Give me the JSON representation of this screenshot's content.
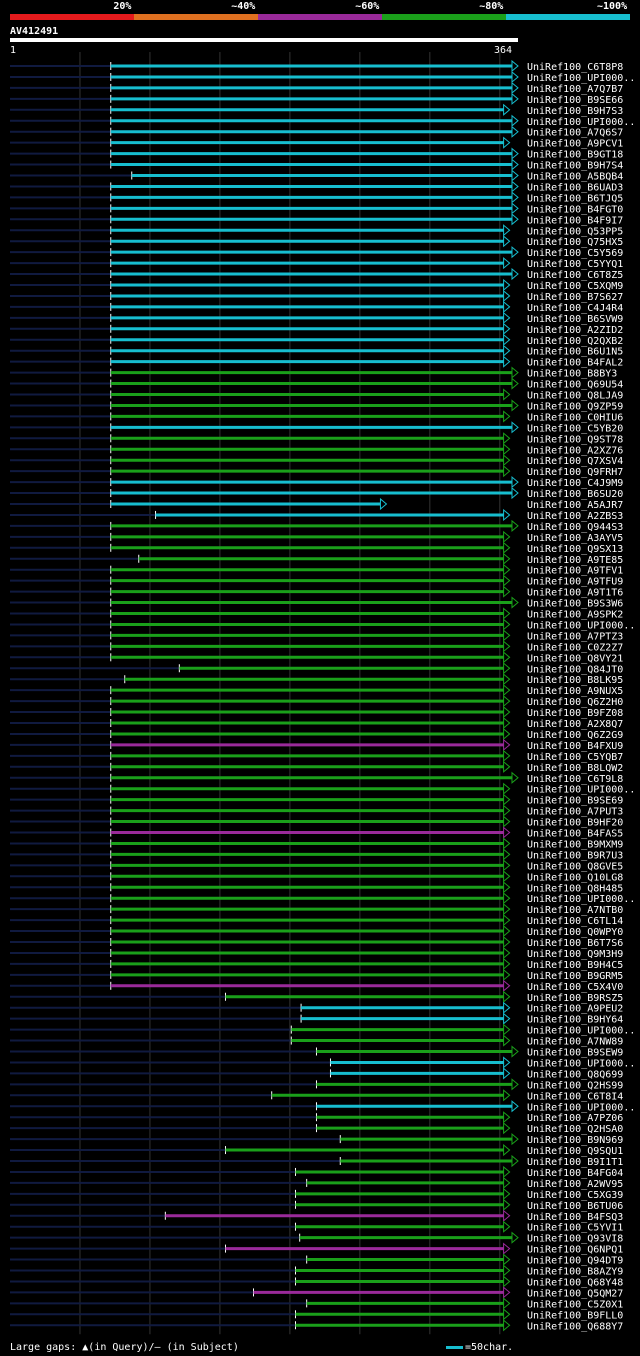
{
  "legend": {
    "items": [
      {
        "label": "20%",
        "color": "#e41a1c"
      },
      {
        "label": "~40%",
        "color": "#e07020"
      },
      {
        "label": "~60%",
        "color": "#9a2a9a"
      },
      {
        "label": "~80%",
        "color": "#1aa01a"
      },
      {
        "label": "~100%",
        "color": "#17becf"
      }
    ]
  },
  "query": {
    "name": "AV412491",
    "start_label": "1",
    "end_label": "364"
  },
  "footer": {
    "gaps_prefix": "Large gaps:",
    "query_gap_text": "(in Query)/",
    "subject_gap_text": "(in Subject)",
    "scale_text": "=50char."
  },
  "chart_data": {
    "type": "alignment-overview",
    "title": "AV412491",
    "query_length": 364,
    "x_range": [
      1,
      364
    ],
    "identity_classes": {
      "cyan": "~100%",
      "green": "~80%",
      "purple": "~60%",
      "orange": "~40%",
      "red": "20%"
    },
    "hits": [
      {
        "name": "UniRef100_C6T8P8",
        "start": 73,
        "end": 364,
        "color": "cyan"
      },
      {
        "name": "UniRef100_UPI000..",
        "start": 73,
        "end": 364,
        "color": "cyan"
      },
      {
        "name": "UniRef100_A7Q7B7",
        "start": 73,
        "end": 364,
        "color": "cyan"
      },
      {
        "name": "UniRef100_B9SE66",
        "start": 73,
        "end": 364,
        "color": "cyan"
      },
      {
        "name": "UniRef100_B9H7S3",
        "start": 73,
        "end": 358,
        "color": "cyan"
      },
      {
        "name": "UniRef100_UPI000..",
        "start": 73,
        "end": 364,
        "color": "cyan"
      },
      {
        "name": "UniRef100_A7Q6S7",
        "start": 73,
        "end": 364,
        "color": "cyan"
      },
      {
        "name": "UniRef100_A9PCV1",
        "start": 73,
        "end": 358,
        "color": "cyan"
      },
      {
        "name": "UniRef100_B9GT18",
        "start": 73,
        "end": 364,
        "color": "cyan"
      },
      {
        "name": "UniRef100_B9H7S4",
        "start": 73,
        "end": 364,
        "color": "cyan"
      },
      {
        "name": "UniRef100_A5BQB4",
        "start": 88,
        "end": 364,
        "color": "cyan"
      },
      {
        "name": "UniRef100_B6UAD3",
        "start": 73,
        "end": 364,
        "color": "cyan"
      },
      {
        "name": "UniRef100_B6TJQ5",
        "start": 73,
        "end": 364,
        "color": "cyan"
      },
      {
        "name": "UniRef100_B4FGT0",
        "start": 73,
        "end": 364,
        "color": "cyan"
      },
      {
        "name": "UniRef100_B4F9I7",
        "start": 73,
        "end": 364,
        "color": "cyan"
      },
      {
        "name": "UniRef100_Q53PP5",
        "start": 73,
        "end": 358,
        "color": "cyan"
      },
      {
        "name": "UniRef100_Q75HX5",
        "start": 73,
        "end": 358,
        "color": "cyan"
      },
      {
        "name": "UniRef100_C5Y569",
        "start": 73,
        "end": 364,
        "color": "cyan"
      },
      {
        "name": "UniRef100_C5YYQ1",
        "start": 73,
        "end": 358,
        "color": "cyan"
      },
      {
        "name": "UniRef100_C6T8Z5",
        "start": 73,
        "end": 364,
        "color": "cyan"
      },
      {
        "name": "UniRef100_C5XQM9",
        "start": 73,
        "end": 358,
        "color": "cyan"
      },
      {
        "name": "UniRef100_B7S627",
        "start": 73,
        "end": 358,
        "color": "cyan"
      },
      {
        "name": "UniRef100_C4J4R4",
        "start": 73,
        "end": 358,
        "color": "cyan"
      },
      {
        "name": "UniRef100_B6SVW9",
        "start": 73,
        "end": 358,
        "color": "cyan"
      },
      {
        "name": "UniRef100_A2ZID2",
        "start": 73,
        "end": 358,
        "color": "cyan"
      },
      {
        "name": "UniRef100_Q2QXB2",
        "start": 73,
        "end": 358,
        "color": "cyan"
      },
      {
        "name": "UniRef100_B6U1N5",
        "start": 73,
        "end": 358,
        "color": "cyan"
      },
      {
        "name": "UniRef100_B4FAL2",
        "start": 73,
        "end": 358,
        "color": "cyan"
      },
      {
        "name": "UniRef100_B8BY3",
        "start": 73,
        "end": 364,
        "color": "green"
      },
      {
        "name": "UniRef100_Q69U54",
        "start": 73,
        "end": 364,
        "color": "green"
      },
      {
        "name": "UniRef100_Q8LJA9",
        "start": 73,
        "end": 358,
        "color": "green"
      },
      {
        "name": "UniRef100_Q9ZP59",
        "start": 73,
        "end": 364,
        "color": "green"
      },
      {
        "name": "UniRef100_C0HIU6",
        "start": 73,
        "end": 358,
        "color": "green"
      },
      {
        "name": "UniRef100_C5YB20",
        "start": 73,
        "end": 364,
        "color": "cyan"
      },
      {
        "name": "UniRef100_Q9ST78",
        "start": 73,
        "end": 358,
        "color": "green"
      },
      {
        "name": "UniRef100_A2XZ76",
        "start": 73,
        "end": 358,
        "color": "green"
      },
      {
        "name": "UniRef100_Q7XSV4",
        "start": 73,
        "end": 358,
        "color": "green"
      },
      {
        "name": "UniRef100_Q9FRH7",
        "start": 73,
        "end": 358,
        "color": "green"
      },
      {
        "name": "UniRef100_C4J9M9",
        "start": 73,
        "end": 364,
        "color": "cyan"
      },
      {
        "name": "UniRef100_B6SU20",
        "start": 73,
        "end": 364,
        "color": "cyan"
      },
      {
        "name": "UniRef100_A5AJR7",
        "start": 73,
        "end": 270,
        "color": "cyan"
      },
      {
        "name": "UniRef100_A2ZBS3",
        "start": 105,
        "end": 358,
        "color": "cyan"
      },
      {
        "name": "UniRef100_Q944S3",
        "start": 73,
        "end": 364,
        "color": "green"
      },
      {
        "name": "UniRef100_A3AYV5",
        "start": 73,
        "end": 358,
        "color": "green"
      },
      {
        "name": "UniRef100_Q9SX13",
        "start": 73,
        "end": 358,
        "color": "green"
      },
      {
        "name": "UniRef100_A9TE85",
        "start": 93,
        "end": 358,
        "color": "green"
      },
      {
        "name": "UniRef100_A9TFV1",
        "start": 73,
        "end": 358,
        "color": "green"
      },
      {
        "name": "UniRef100_A9TFU9",
        "start": 73,
        "end": 358,
        "color": "green"
      },
      {
        "name": "UniRef100_A9T1T6",
        "start": 73,
        "end": 358,
        "color": "green"
      },
      {
        "name": "UniRef100_B9S3W6",
        "start": 73,
        "end": 364,
        "color": "green"
      },
      {
        "name": "UniRef100_A9SPK2",
        "start": 73,
        "end": 358,
        "color": "green"
      },
      {
        "name": "UniRef100_UPI000..",
        "start": 73,
        "end": 358,
        "color": "green"
      },
      {
        "name": "UniRef100_A7PTZ3",
        "start": 73,
        "end": 358,
        "color": "green"
      },
      {
        "name": "UniRef100_C0Z2Z7",
        "start": 73,
        "end": 358,
        "color": "green"
      },
      {
        "name": "UniRef100_Q8VY21",
        "start": 73,
        "end": 358,
        "color": "green"
      },
      {
        "name": "UniRef100_Q84JT0",
        "start": 122,
        "end": 358,
        "color": "green"
      },
      {
        "name": "UniRef100_B8LK95",
        "start": 83,
        "end": 358,
        "color": "green"
      },
      {
        "name": "UniRef100_A9NUX5",
        "start": 73,
        "end": 358,
        "color": "green"
      },
      {
        "name": "UniRef100_Q6Z2H0",
        "start": 73,
        "end": 358,
        "color": "green"
      },
      {
        "name": "UniRef100_B9FZ08",
        "start": 73,
        "end": 358,
        "color": "green"
      },
      {
        "name": "UniRef100_A2X8Q7",
        "start": 73,
        "end": 358,
        "color": "green"
      },
      {
        "name": "UniRef100_Q6Z2G9",
        "start": 73,
        "end": 358,
        "color": "green"
      },
      {
        "name": "UniRef100_B4FXU9",
        "start": 73,
        "end": 358,
        "color": "purple"
      },
      {
        "name": "UniRef100_C5YQB7",
        "start": 73,
        "end": 358,
        "color": "green"
      },
      {
        "name": "UniRef100_B8LQW2",
        "start": 73,
        "end": 358,
        "color": "green"
      },
      {
        "name": "UniRef100_C6T9L8",
        "start": 73,
        "end": 364,
        "color": "green"
      },
      {
        "name": "UniRef100_UPI000..",
        "start": 73,
        "end": 358,
        "color": "green"
      },
      {
        "name": "UniRef100_B9SE69",
        "start": 73,
        "end": 358,
        "color": "green"
      },
      {
        "name": "UniRef100_A7PUT3",
        "start": 73,
        "end": 358,
        "color": "green"
      },
      {
        "name": "UniRef100_B9HF20",
        "start": 73,
        "end": 358,
        "color": "green"
      },
      {
        "name": "UniRef100_B4FAS5",
        "start": 73,
        "end": 358,
        "color": "purple"
      },
      {
        "name": "UniRef100_B9MXM9",
        "start": 73,
        "end": 358,
        "color": "green"
      },
      {
        "name": "UniRef100_B9R7U3",
        "start": 73,
        "end": 358,
        "color": "green"
      },
      {
        "name": "UniRef100_Q8GVE5",
        "start": 73,
        "end": 358,
        "color": "green"
      },
      {
        "name": "UniRef100_Q10LG8",
        "start": 73,
        "end": 358,
        "color": "green"
      },
      {
        "name": "UniRef100_Q8H485",
        "start": 73,
        "end": 358,
        "color": "green"
      },
      {
        "name": "UniRef100_UPI000..",
        "start": 73,
        "end": 358,
        "color": "green"
      },
      {
        "name": "UniRef100_A7NTB0",
        "start": 73,
        "end": 358,
        "color": "green"
      },
      {
        "name": "UniRef100_C6TL14",
        "start": 73,
        "end": 358,
        "color": "green"
      },
      {
        "name": "UniRef100_Q0WPY0",
        "start": 73,
        "end": 358,
        "color": "green"
      },
      {
        "name": "UniRef100_B6T7S6",
        "start": 73,
        "end": 358,
        "color": "green"
      },
      {
        "name": "UniRef100_Q9M3H9",
        "start": 73,
        "end": 358,
        "color": "green"
      },
      {
        "name": "UniRef100_B9H4C5",
        "start": 73,
        "end": 358,
        "color": "green"
      },
      {
        "name": "UniRef100_B9GRM5",
        "start": 73,
        "end": 358,
        "color": "green"
      },
      {
        "name": "UniRef100_C5X4V0",
        "start": 73,
        "end": 358,
        "color": "purple"
      },
      {
        "name": "UniRef100_B9RSZ5",
        "start": 155,
        "end": 358,
        "color": "green"
      },
      {
        "name": "UniRef100_A9PEU2",
        "start": 209,
        "end": 358,
        "color": "cyan"
      },
      {
        "name": "UniRef100_B9HY64",
        "start": 209,
        "end": 358,
        "color": "cyan"
      },
      {
        "name": "UniRef100_UPI000..",
        "start": 202,
        "end": 358,
        "color": "green"
      },
      {
        "name": "UniRef100_A7NW89",
        "start": 202,
        "end": 358,
        "color": "green"
      },
      {
        "name": "UniRef100_B9SEW9",
        "start": 220,
        "end": 364,
        "color": "green"
      },
      {
        "name": "UniRef100_UPI000..",
        "start": 230,
        "end": 358,
        "color": "cyan"
      },
      {
        "name": "UniRef100_Q8Q699",
        "start": 230,
        "end": 358,
        "color": "cyan"
      },
      {
        "name": "UniRef100_Q2HS99",
        "start": 220,
        "end": 364,
        "color": "green"
      },
      {
        "name": "UniRef100_C6T8I4",
        "start": 188,
        "end": 358,
        "color": "green"
      },
      {
        "name": "UniRef100_UPI000..",
        "start": 220,
        "end": 364,
        "color": "cyan"
      },
      {
        "name": "UniRef100_A7PZ06",
        "start": 220,
        "end": 358,
        "color": "green"
      },
      {
        "name": "UniRef100_Q2HSA0",
        "start": 220,
        "end": 358,
        "color": "green"
      },
      {
        "name": "UniRef100_B9N969",
        "start": 237,
        "end": 364,
        "color": "green"
      },
      {
        "name": "UniRef100_Q9SQU1",
        "start": 155,
        "end": 358,
        "color": "green"
      },
      {
        "name": "UniRef100_B9I1T1",
        "start": 237,
        "end": 364,
        "color": "green"
      },
      {
        "name": "UniRef100_B4FG04",
        "start": 205,
        "end": 358,
        "color": "green"
      },
      {
        "name": "UniRef100_A2WV95",
        "start": 213,
        "end": 358,
        "color": "green"
      },
      {
        "name": "UniRef100_C5XG39",
        "start": 205,
        "end": 358,
        "color": "green"
      },
      {
        "name": "UniRef100_B6TU06",
        "start": 205,
        "end": 358,
        "color": "green"
      },
      {
        "name": "UniRef100_B4FSQ3",
        "start": 112,
        "end": 358,
        "color": "purple"
      },
      {
        "name": "UniRef100_C5YVI1",
        "start": 205,
        "end": 358,
        "color": "green"
      },
      {
        "name": "UniRef100_Q93VI8",
        "start": 208,
        "end": 364,
        "color": "green"
      },
      {
        "name": "UniRef100_Q6NPQ1",
        "start": 155,
        "end": 358,
        "color": "purple"
      },
      {
        "name": "UniRef100_Q94DT9",
        "start": 213,
        "end": 358,
        "color": "green"
      },
      {
        "name": "UniRef100_B8AZY9",
        "start": 205,
        "end": 358,
        "color": "green"
      },
      {
        "name": "UniRef100_Q68Y48",
        "start": 205,
        "end": 358,
        "color": "green"
      },
      {
        "name": "UniRef100_Q5QM27",
        "start": 175,
        "end": 358,
        "color": "purple"
      },
      {
        "name": "UniRef100_C5Z0X1",
        "start": 213,
        "end": 358,
        "color": "green"
      },
      {
        "name": "UniRef100_B9FLL0",
        "start": 205,
        "end": 358,
        "color": "green"
      },
      {
        "name": "UniRef100_Q688Y7",
        "start": 205,
        "end": 358,
        "color": "green"
      }
    ]
  }
}
